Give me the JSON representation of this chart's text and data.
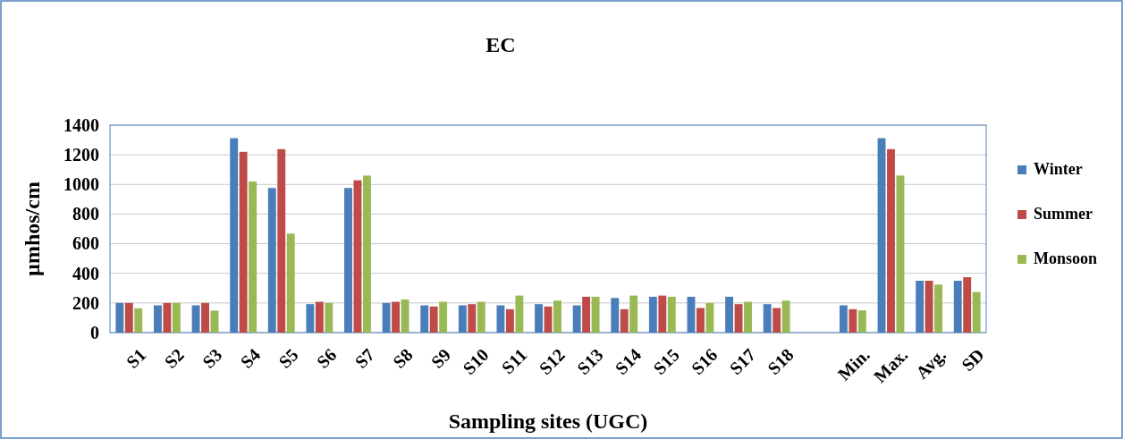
{
  "chart_data": {
    "type": "bar",
    "title": "EC",
    "xlabel": "Sampling sites (UGC)",
    "ylabel": "µmhos/cm",
    "categories": [
      "S1",
      "S2",
      "S3",
      "S4",
      "S5",
      "S6",
      "S7",
      "S8",
      "S9",
      "S10",
      "S11",
      "S12",
      "S13",
      "S14",
      "S15",
      "S16",
      "S17",
      "S18",
      null,
      "Min.",
      "Max.",
      "Avg.",
      "SD"
    ],
    "series": [
      {
        "name": "Winter",
        "color": "#4a7ebb",
        "values": [
          200,
          184,
          184,
          1312,
          976,
          192,
          976,
          200,
          184,
          184,
          184,
          192,
          184,
          234,
          242,
          242,
          242,
          192,
          null,
          184,
          1312,
          350,
          350
        ]
      },
      {
        "name": "Summer",
        "color": "#be4b48",
        "values": [
          200,
          200,
          200,
          1220,
          1238,
          208,
          1028,
          208,
          176,
          192,
          158,
          176,
          242,
          158,
          250,
          166,
          192,
          166,
          null,
          158,
          1238,
          350,
          374
        ]
      },
      {
        "name": "Monsoon",
        "color": "#98b954",
        "values": [
          164,
          200,
          148,
          1020,
          668,
          200,
          1060,
          224,
          208,
          208,
          250,
          216,
          242,
          250,
          242,
          200,
          208,
          216,
          null,
          150,
          1060,
          324,
          274
        ]
      }
    ],
    "ylim": [
      0,
      1400
    ],
    "yticks": [
      0,
      200,
      400,
      600,
      800,
      1000,
      1200,
      1400
    ],
    "grid": "y",
    "legend": "right"
  }
}
